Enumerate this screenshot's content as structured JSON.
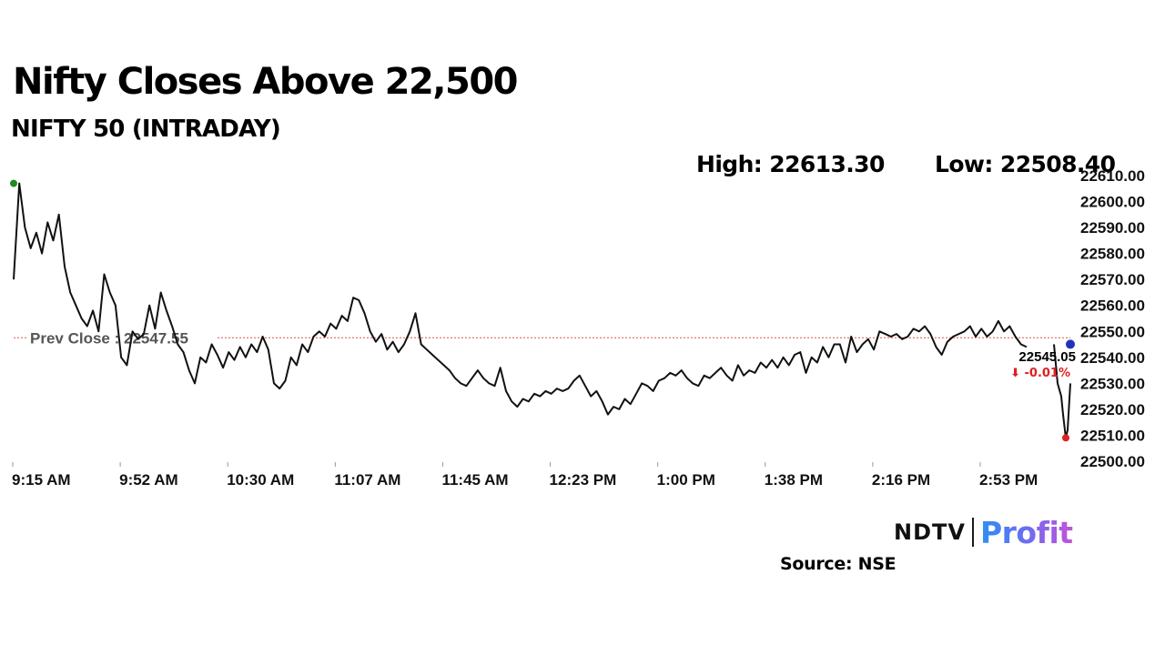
{
  "header": {
    "title": "Nifty Closes Above 22,500",
    "subtitle": "NIFTY 50 (INTRADAY)",
    "high_label": "High: 22613.30",
    "low_label": "Low: 22508.40"
  },
  "footer": {
    "logo_ndtv": "NDTV",
    "logo_profit": "Profit",
    "source": "Source: NSE"
  },
  "chart_data": {
    "type": "line",
    "series": [
      {
        "values": [
          22570,
          22607,
          22590,
          22582,
          22588,
          22580,
          22592,
          22585,
          22595,
          22575,
          22565,
          22560,
          22555,
          22552,
          22558,
          22550,
          22572,
          22565,
          22560,
          22540,
          22537,
          22550,
          22547,
          22549,
          22560,
          22551,
          22565,
          22558,
          22552,
          22545,
          22542,
          22535,
          22530,
          22540,
          22538,
          22545,
          22541,
          22536,
          22542,
          22539,
          22544,
          22540,
          22545,
          22542,
          22548,
          22543,
          22530,
          22528,
          22531,
          22540,
          22537,
          22545,
          22542,
          22548,
          22550,
          22548,
          22553,
          22551,
          22556,
          22554,
          22563,
          22562,
          22557,
          22550,
          22546,
          22549,
          22543,
          22546,
          22542,
          22545,
          22550,
          22557,
          22545,
          22543,
          22541,
          22539,
          22537,
          22535,
          22532,
          22530,
          22529,
          22532,
          22535,
          22532,
          22530,
          22529,
          22536,
          22527,
          22523,
          22521,
          22524,
          22523,
          22526,
          22525,
          22527,
          22526,
          22528,
          22527,
          22528,
          22531,
          22533,
          22529,
          22525,
          22527,
          22523,
          22518,
          22521,
          22520,
          22524,
          22522,
          22526,
          22530,
          22529,
          22527,
          22531,
          22532,
          22534,
          22533,
          22535,
          22532,
          22530,
          22529,
          22533,
          22532,
          22534,
          22536,
          22533,
          22531,
          22537,
          22533,
          22535,
          22534,
          22538,
          22536,
          22539,
          22536,
          22540,
          22537,
          22541,
          22542,
          22534,
          22540,
          22538,
          22544,
          22540,
          22545,
          22545,
          22538,
          22548,
          22542,
          22545,
          22547,
          22543,
          22550,
          22549,
          22548,
          22549,
          22547,
          22548,
          22551,
          22550,
          22552,
          22549,
          22544,
          22541,
          22546,
          22548,
          22549,
          22550,
          22552,
          22548,
          22551,
          22548,
          22550,
          22554,
          22550,
          22552,
          22548,
          22545,
          22544
        ],
        "marker_high": 22607,
        "marker_low": 22509,
        "last_value": 22545.05
      }
    ],
    "tail": [
      22545,
      22530,
      22525,
      22518,
      22512,
      22509,
      22512,
      22530
    ],
    "x_ticks": [
      "9:15 AM",
      "9:52 AM",
      "10:30 AM",
      "11:07 AM",
      "11:45 AM",
      "12:23 PM",
      "1:00 PM",
      "1:38 PM",
      "2:16 PM",
      "2:53 PM"
    ],
    "y_ticks": [
      "22500.00",
      "22510.00",
      "22520.00",
      "22530.00",
      "22540.00",
      "22550.00",
      "22560.00",
      "22570.00",
      "22580.00",
      "22590.00",
      "22600.00",
      "22610.00"
    ],
    "ylim": [
      22500,
      22610
    ],
    "prev_close": 22547.55,
    "prev_close_label": "Prev Close : 22547.55",
    "last_label": "22545.05",
    "change_label": "⬇ -0.01%",
    "colors": {
      "line": "#111111",
      "prev_close": "#d9534f",
      "high_marker": "#1e8c1e",
      "low_marker": "#e02020",
      "last_marker": "#2233bb",
      "change": "#e02020"
    }
  }
}
